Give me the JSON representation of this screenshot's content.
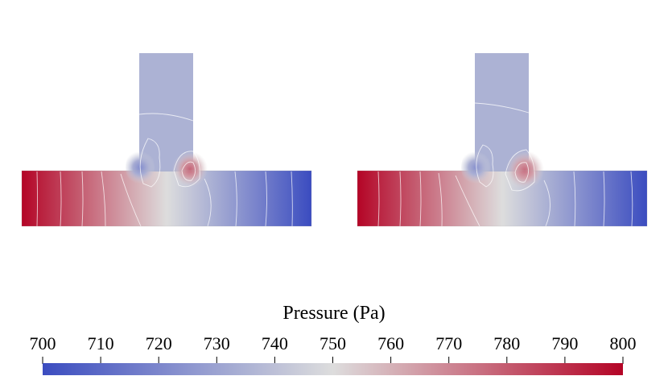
{
  "chart_data": {
    "type": "heatmap",
    "description_panels": [
      "left",
      "right"
    ],
    "colorbar": {
      "title": "Pressure (Pa)",
      "min": 700,
      "max": 800,
      "ticks": [
        700,
        710,
        720,
        730,
        740,
        750,
        760,
        770,
        780,
        790,
        800
      ],
      "tick_labels": [
        "700",
        "710",
        "720",
        "730",
        "740",
        "750",
        "760",
        "770",
        "780",
        "790",
        "800"
      ],
      "colormap": [
        "#3b4cc0",
        "#dddddd",
        "#b40426"
      ]
    },
    "panels": [
      {
        "name": "left",
        "inlet_left_pressure": 800,
        "outlet_right_pressure": 700,
        "branch_pressure": 735,
        "hot_spot_pressure": 778,
        "cold_spot_pressure": 722
      },
      {
        "name": "right",
        "inlet_left_pressure": 800,
        "outlet_right_pressure": 700,
        "branch_pressure": 735,
        "hot_spot_pressure": 776,
        "cold_spot_pressure": 724
      }
    ]
  }
}
